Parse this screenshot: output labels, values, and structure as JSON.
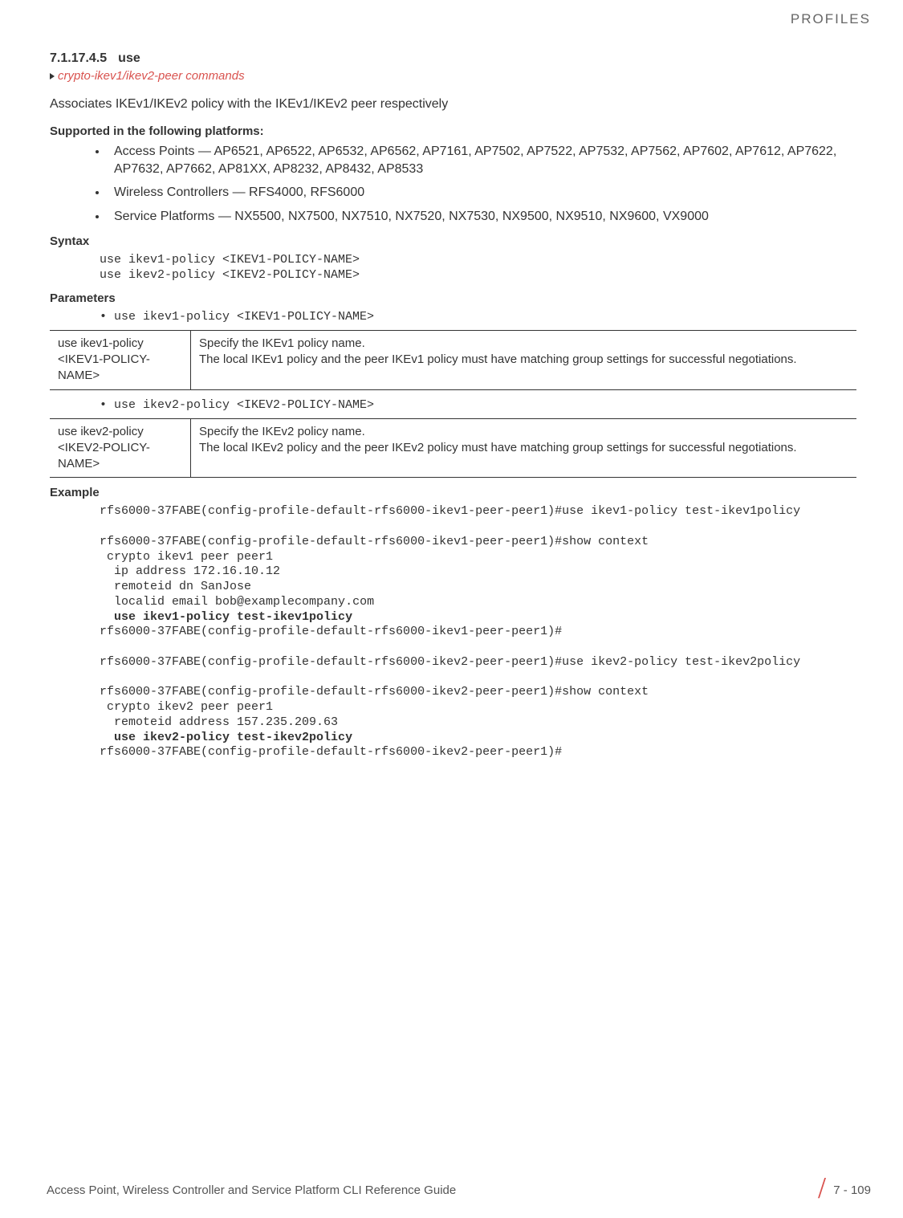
{
  "header": {
    "category": "PROFILES"
  },
  "section": {
    "number": "7.1.17.4.5",
    "title": "use",
    "breadcrumb": "crypto-ikev1/ikev2-peer commands",
    "description": "Associates IKEv1/IKEv2 policy with the IKEv1/IKEv2 peer respectively"
  },
  "platforms": {
    "heading": "Supported in the following platforms:",
    "items": [
      "Access Points — AP6521, AP6522, AP6532, AP6562, AP7161, AP7502, AP7522, AP7532, AP7562, AP7602, AP7612, AP7622, AP7632, AP7662, AP81XX, AP8232, AP8432, AP8533",
      "Wireless Controllers — RFS4000, RFS6000",
      "Service Platforms — NX5500, NX7500, NX7510, NX7520, NX7530, NX9500, NX9510, NX9600, VX9000"
    ]
  },
  "syntax": {
    "heading": "Syntax",
    "code": "use ikev1-policy <IKEV1-POLICY-NAME>\nuse ikev2-policy <IKEV2-POLICY-NAME>"
  },
  "parameters": {
    "heading": "Parameters",
    "param1": {
      "bullet": "• use ikev1-policy <IKEV1-POLICY-NAME>",
      "left": "use ikev1-policy <IKEV1-POLICY-NAME>",
      "right1": "Specify the IKEv1 policy name.",
      "right2": "The local IKEv1 policy and the peer IKEv1 policy must have matching group settings for successful negotiations."
    },
    "param2": {
      "bullet": "• use ikev2-policy <IKEV2-POLICY-NAME>",
      "left": "use ikev2-policy <IKEV2-POLICY-NAME>",
      "right1": "Specify the IKEv2 policy name.",
      "right2": "The local IKEv2 policy and the peer IKEv2 policy must have matching group settings for successful negotiations."
    }
  },
  "example": {
    "heading": "Example",
    "line1": "rfs6000-37FABE(config-profile-default-rfs6000-ikev1-peer-peer1)#use ikev1-policy test-ikev1policy",
    "line2": "rfs6000-37FABE(config-profile-default-rfs6000-ikev1-peer-peer1)#show context",
    "line3": " crypto ikev1 peer peer1",
    "line4": "  ip address 172.16.10.12",
    "line5": "  remoteid dn SanJose",
    "line6": "  localid email bob@examplecompany.com",
    "line7": "  use ikev1-policy test-ikev1policy",
    "line8": "rfs6000-37FABE(config-profile-default-rfs6000-ikev1-peer-peer1)#",
    "line9": "rfs6000-37FABE(config-profile-default-rfs6000-ikev2-peer-peer1)#use ikev2-policy test-ikev2policy",
    "line10": "rfs6000-37FABE(config-profile-default-rfs6000-ikev2-peer-peer1)#show context",
    "line11": " crypto ikev2 peer peer1",
    "line12": "  remoteid address 157.235.209.63",
    "line13": "  use ikev2-policy test-ikev2policy",
    "line14": "rfs6000-37FABE(config-profile-default-rfs6000-ikev2-peer-peer1)#"
  },
  "footer": {
    "guide": "Access Point, Wireless Controller and Service Platform CLI Reference Guide",
    "page": "7 - 109"
  },
  "colors": {
    "accent": "#d9534f",
    "text": "#333333",
    "muted": "#666666"
  }
}
